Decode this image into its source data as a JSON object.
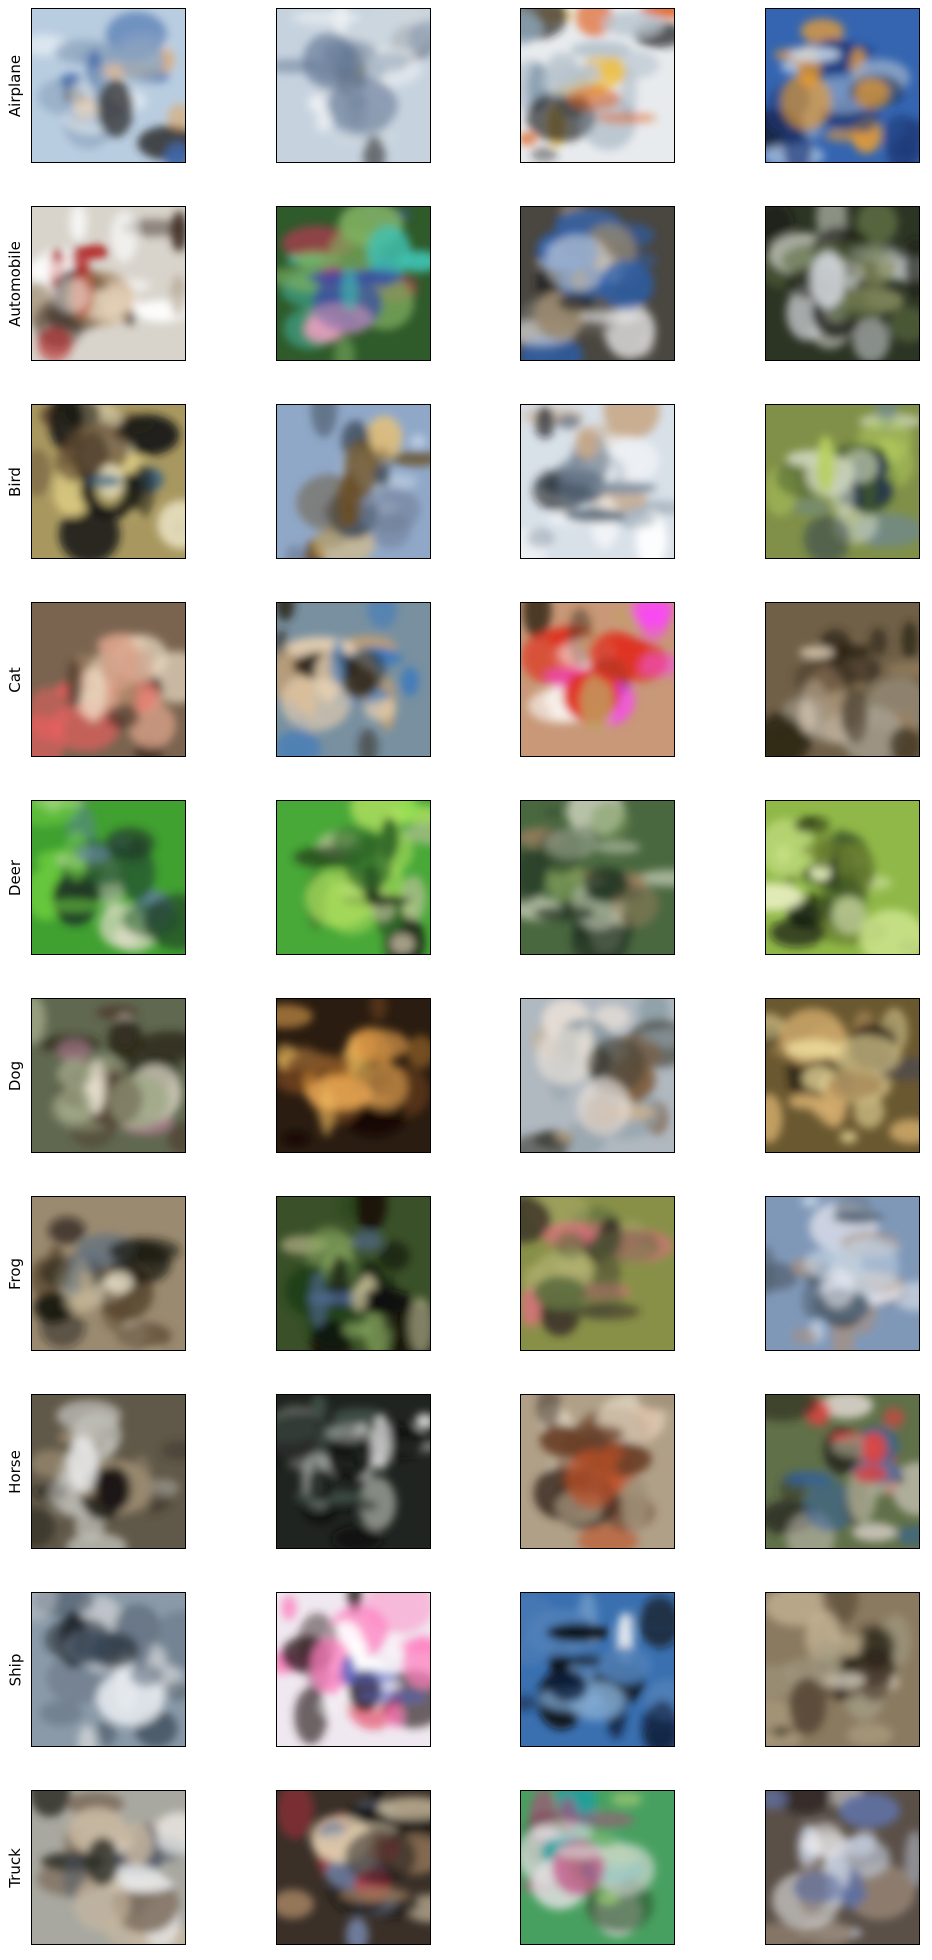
{
  "figure": {
    "row_labels": [
      "Airplane",
      "Automobile",
      "Bird",
      "Cat",
      "Deer",
      "Dog",
      "Frog",
      "Horse",
      "Ship",
      "Truck"
    ],
    "columns": 4,
    "samples": [
      [
        {
          "bg": "#b9cde0",
          "palette": [
            "#3f67a8",
            "#e6eef4",
            "#2a2a2a",
            "#e8a050",
            "#8aa2bc"
          ]
        },
        {
          "bg": "#c6d3df",
          "palette": [
            "#8a9bb0",
            "#3a3a3a",
            "#f0f2f4",
            "#5a7090",
            "#cfd7de"
          ]
        },
        {
          "bg": "#e8ebee",
          "palette": [
            "#b8c4ce",
            "#f0c040",
            "#e06020",
            "#202020",
            "#8aa0b0"
          ]
        },
        {
          "bg": "#3565b0",
          "palette": [
            "#1e3a78",
            "#c8d8ea",
            "#f0a030",
            "#0a1020",
            "#90a8c8"
          ]
        }
      ],
      [
        {
          "bg": "#d8d4cc",
          "palette": [
            "#ffffff",
            "#3a2a20",
            "#c8a070",
            "#b02020",
            "#a89880"
          ]
        },
        {
          "bg": "#2f5a2a",
          "palette": [
            "#40c0b0",
            "#e03060",
            "#3a50a0",
            "#80b060",
            "#f0a0c0"
          ]
        },
        {
          "bg": "#4a4640",
          "palette": [
            "#2a60b0",
            "#e8e8e8",
            "#202020",
            "#9a8a70",
            "#6a6860"
          ]
        },
        {
          "bg": "#2c3424",
          "palette": [
            "#d0d4d8",
            "#5a6a40",
            "#8a9060",
            "#1a1a14",
            "#b8bcb0"
          ]
        }
      ],
      [
        {
          "bg": "#a89860",
          "palette": [
            "#d8c880",
            "#1a1a14",
            "#3a6080",
            "#e8e0c0",
            "#604830"
          ]
        },
        {
          "bg": "#90a8c8",
          "palette": [
            "#6a5028",
            "#c8d8e8",
            "#405060",
            "#e0c080",
            "#70809a"
          ]
        },
        {
          "bg": "#d8e0e8",
          "palette": [
            "#101418",
            "#ffffff",
            "#8090a0",
            "#c8a888",
            "#506070"
          ]
        },
        {
          "bg": "#809048",
          "palette": [
            "#b8d060",
            "#203050",
            "#d0d8c0",
            "#405828",
            "#708890"
          ]
        }
      ],
      [
        {
          "bg": "#7a6450",
          "palette": [
            "#d8a088",
            "#e8d8c0",
            "#3a2a20",
            "#f06060",
            "#a08060"
          ]
        },
        {
          "bg": "#7890a0",
          "palette": [
            "#3878c0",
            "#c8a070",
            "#2a2418",
            "#e8d0b0",
            "#90b0c8"
          ]
        },
        {
          "bg": "#c89878",
          "palette": [
            "#e03020",
            "#ff40ff",
            "#ffffff",
            "#403020",
            "#c0a060"
          ]
        },
        {
          "bg": "#706048",
          "palette": [
            "#d8c8b0",
            "#302818",
            "#988060",
            "#a8a090",
            "#4a3c28"
          ]
        }
      ],
      [
        {
          "bg": "#40a030",
          "palette": [
            "#70d040",
            "#203828",
            "#e8e0d0",
            "#6080a0",
            "#2a6030"
          ]
        },
        {
          "bg": "#48a838",
          "palette": [
            "#90e050",
            "#1a2a18",
            "#d8c8b0",
            "#306828",
            "#b0e060"
          ]
        },
        {
          "bg": "#4a6840",
          "palette": [
            "#203020",
            "#7a9a58",
            "#a08060",
            "#c0c8b0",
            "#304830"
          ]
        },
        {
          "bg": "#90b848",
          "palette": [
            "#0a0a0a",
            "#d0e890",
            "#405828",
            "#e8f0c0",
            "#6a8030"
          ]
        }
      ],
      [
        {
          "bg": "#606850",
          "palette": [
            "#e8e0d0",
            "#2a2818",
            "#a0a888",
            "#c080a0",
            "#504030"
          ]
        },
        {
          "bg": "#2a1c10",
          "palette": [
            "#c08030",
            "#f0c060",
            "#6a4020",
            "#0a0806",
            "#e0a050"
          ]
        },
        {
          "bg": "#b0b8c0",
          "palette": [
            "#806040",
            "#e8e0d8",
            "#404038",
            "#c8b090",
            "#90a0a8"
          ]
        },
        {
          "bg": "#6a5830",
          "palette": [
            "#d8b070",
            "#201810",
            "#f0e0a0",
            "#3a4060",
            "#a08050"
          ]
        }
      ],
      [
        {
          "bg": "#9a8a70",
          "palette": [
            "#e8e0c8",
            "#1a1810",
            "#5a4830",
            "#c0b090",
            "#607080"
          ]
        },
        {
          "bg": "#3a5028",
          "palette": [
            "#88a860",
            "#0a0808",
            "#506890",
            "#c8c098",
            "#204018"
          ]
        },
        {
          "bg": "#889048",
          "palette": [
            "#d8d8a0",
            "#3a3028",
            "#e07080",
            "#607040",
            "#b0b070"
          ]
        },
        {
          "bg": "#8098b8",
          "palette": [
            "#c8d8e8",
            "#2a2a28",
            "#a89080",
            "#e8e8f0",
            "#506070"
          ]
        }
      ],
      [
        {
          "bg": "#605848",
          "palette": [
            "#e8e8e8",
            "#1a1812",
            "#9a8a70",
            "#c0c0b8",
            "#3a3428"
          ]
        },
        {
          "bg": "#202420",
          "palette": [
            "#ffffff",
            "#405048",
            "#0a0c0a",
            "#8a9088",
            "#d8dcd8"
          ]
        },
        {
          "bg": "#b0a088",
          "palette": [
            "#6a4028",
            "#c05028",
            "#e8dcc8",
            "#3a2a20",
            "#a09078"
          ]
        },
        {
          "bg": "#607048",
          "palette": [
            "#d8d0c8",
            "#e04040",
            "#3060a0",
            "#2a2a20",
            "#a8a890"
          ]
        }
      ],
      [
        {
          "bg": "#8a9aa8",
          "palette": [
            "#e8ecf0",
            "#3a4858",
            "#c8ccd0",
            "#202830",
            "#6a7888"
          ]
        },
        {
          "bg": "#f0e8f0",
          "palette": [
            "#e02040",
            "#ffffff",
            "#302020",
            "#ff80c0",
            "#5060c0"
          ]
        },
        {
          "bg": "#3a70b0",
          "palette": [
            "#102040",
            "#e8ecf0",
            "#80a8d0",
            "#0a0c10",
            "#5080b8"
          ]
        },
        {
          "bg": "#8a7a60",
          "palette": [
            "#e8e0d0",
            "#2a2418",
            "#c0b090",
            "#504030",
            "#a09880"
          ]
        }
      ],
      [
        {
          "bg": "#a8a8a0",
          "palette": [
            "#e8e8e8",
            "#303028",
            "#807060",
            "#c8b8a0",
            "#505868"
          ]
        },
        {
          "bg": "#3a3028",
          "palette": [
            "#e0d0b0",
            "#101010",
            "#a08060",
            "#c03040",
            "#7080a0"
          ]
        },
        {
          "bg": "#48a060",
          "palette": [
            "#20a0a0",
            "#e0e0e0",
            "#c04080",
            "#305830",
            "#90c070"
          ]
        },
        {
          "bg": "#5a5048",
          "palette": [
            "#f0f0f0",
            "#c0c8d8",
            "#201818",
            "#908070",
            "#6070a0"
          ]
        }
      ]
    ]
  }
}
